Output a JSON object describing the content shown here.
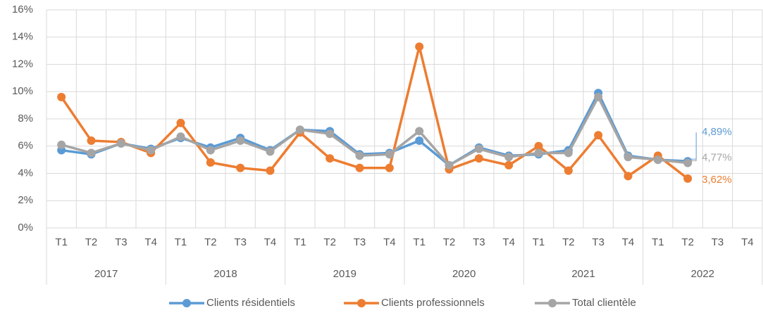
{
  "chart_data": {
    "type": "line",
    "categories": [
      "T1",
      "T2",
      "T3",
      "T4",
      "T1",
      "T2",
      "T3",
      "T4",
      "T1",
      "T2",
      "T3",
      "T4",
      "T1",
      "T2",
      "T3",
      "T4",
      "T1",
      "T2",
      "T3",
      "T4",
      "T1",
      "T2",
      "T3",
      "T4"
    ],
    "category_groups": [
      "2017",
      "2018",
      "2019",
      "2020",
      "2021",
      "2022"
    ],
    "series": [
      {
        "name": "Clients résidentiels",
        "color": "#5b9bd5",
        "values": [
          5.7,
          5.4,
          6.2,
          5.8,
          6.6,
          5.9,
          6.6,
          5.7,
          7.2,
          7.1,
          5.4,
          5.5,
          6.4,
          4.6,
          5.9,
          5.3,
          5.4,
          5.7,
          9.9,
          5.3,
          5.0,
          4.89,
          null,
          null
        ],
        "value_labels": [
          null,
          null,
          null,
          null,
          null,
          null,
          null,
          null,
          null,
          null,
          null,
          null,
          null,
          null,
          null,
          null,
          null,
          null,
          null,
          null,
          null,
          "4,89%",
          null,
          null
        ]
      },
      {
        "name": "Clients professionnels",
        "color": "#ed7d31",
        "values": [
          9.6,
          6.4,
          6.3,
          5.5,
          7.7,
          4.8,
          4.4,
          4.2,
          7.0,
          5.1,
          4.4,
          4.4,
          13.3,
          4.3,
          5.1,
          4.6,
          6.0,
          4.2,
          6.8,
          3.8,
          5.3,
          3.62,
          null,
          null
        ],
        "value_labels": [
          null,
          null,
          null,
          null,
          null,
          null,
          null,
          null,
          null,
          null,
          null,
          null,
          null,
          null,
          null,
          null,
          null,
          null,
          null,
          null,
          null,
          "3,62%",
          null,
          null
        ]
      },
      {
        "name": "Total clientèle",
        "color": "#a5a5a5",
        "values": [
          6.1,
          5.5,
          6.2,
          5.7,
          6.7,
          5.7,
          6.4,
          5.6,
          7.2,
          6.9,
          5.3,
          5.4,
          7.1,
          4.6,
          5.8,
          5.2,
          5.5,
          5.5,
          9.6,
          5.2,
          5.0,
          4.77,
          null,
          null
        ],
        "value_labels": [
          null,
          null,
          null,
          null,
          null,
          null,
          null,
          null,
          null,
          null,
          null,
          null,
          null,
          null,
          null,
          null,
          null,
          null,
          null,
          null,
          null,
          "4,77%",
          null,
          null
        ]
      }
    ],
    "ylim": [
      0,
      16
    ],
    "yticks": [
      {
        "value": 0,
        "label": "0%"
      },
      {
        "value": 2,
        "label": "2%"
      },
      {
        "value": 4,
        "label": "4%"
      },
      {
        "value": 6,
        "label": "6%"
      },
      {
        "value": 8,
        "label": "8%"
      },
      {
        "value": 10,
        "label": "10%"
      },
      {
        "value": 12,
        "label": "12%"
      },
      {
        "value": 14,
        "label": "14%"
      },
      {
        "value": 16,
        "label": "16%"
      }
    ],
    "grid": true,
    "legend": "bottom"
  }
}
